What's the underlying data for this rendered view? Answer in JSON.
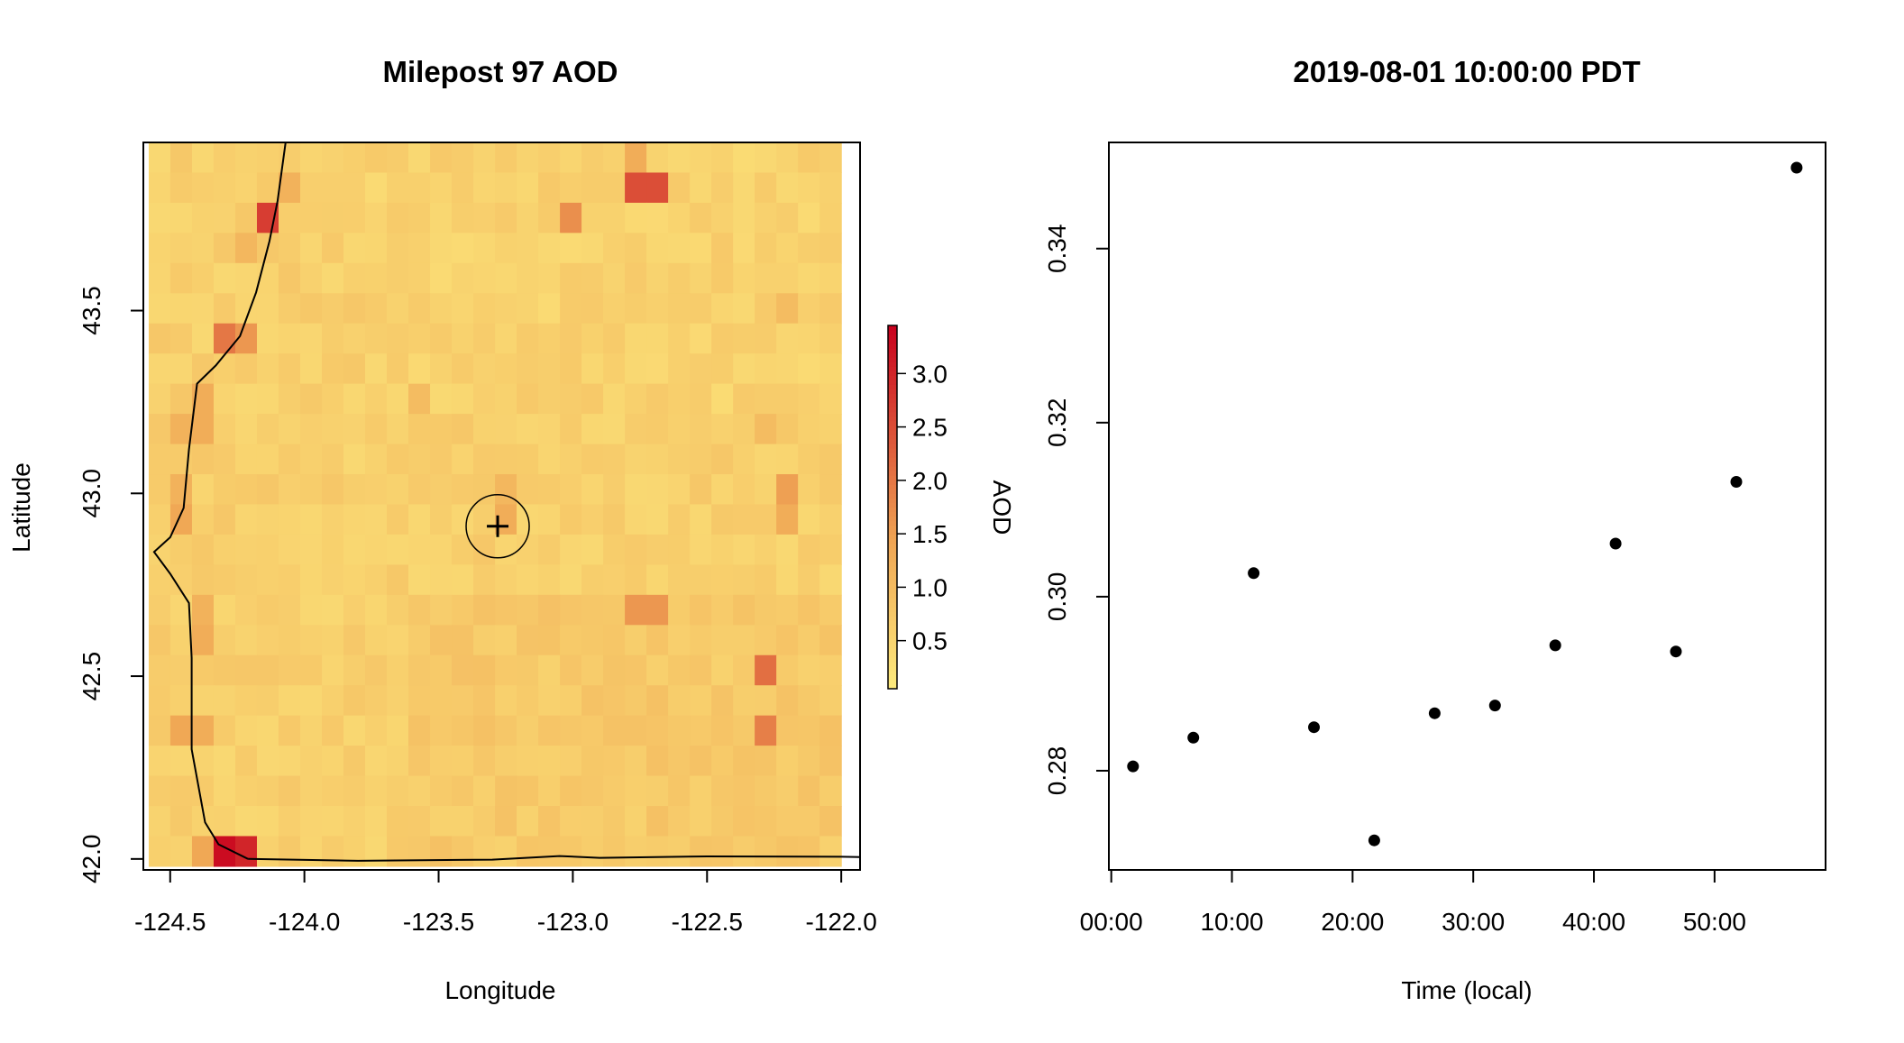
{
  "colors": {
    "aod_low": "#fdeb7d",
    "aod_mid": "#f0a755",
    "aod_high": "#c8001d",
    "background": "#ffffff",
    "ink": "#000000"
  },
  "chart_data": [
    {
      "type": "heatmap",
      "title": "Milepost 97 AOD",
      "xlabel": "Longitude",
      "ylabel": "Latitude",
      "xlim": [
        -124.6,
        -121.93
      ],
      "ylim": [
        41.97,
        43.96
      ],
      "xticks": [
        -124.5,
        -124.0,
        -123.5,
        -123.0,
        -122.5,
        -122.0
      ],
      "xtick_labels": [
        "-124.5",
        "-124.0",
        "-123.5",
        "-123.0",
        "-122.5",
        "-122.0"
      ],
      "yticks": [
        42.0,
        42.5,
        43.0,
        43.5
      ],
      "ytick_labels": [
        "42.0",
        "42.5",
        "43.0",
        "43.5"
      ],
      "grid": {
        "lon_min": -124.58,
        "lon_max": -122.0,
        "lat_min": 41.98,
        "lat_max": 43.96,
        "ncols": 32,
        "nrows": 24,
        "typical_aod": 0.6
      },
      "hotspots": [
        {
          "lon": -124.275,
          "lat": 42.01,
          "aod": 3.3
        },
        {
          "lon": -124.195,
          "lat": 42.01,
          "aod": 3.0
        },
        {
          "lon": -124.355,
          "lat": 42.01,
          "aod": 1.4
        },
        {
          "lon": -124.435,
          "lat": 42.315,
          "aod": 1.4
        },
        {
          "lon": -124.355,
          "lat": 42.315,
          "aod": 1.3
        },
        {
          "lon": -124.355,
          "lat": 42.58,
          "aod": 1.3
        },
        {
          "lon": -124.355,
          "lat": 42.66,
          "aod": 1.2
        },
        {
          "lon": -124.435,
          "lat": 42.99,
          "aod": 1.2
        },
        {
          "lon": -124.435,
          "lat": 42.905,
          "aod": 1.4
        },
        {
          "lon": -124.435,
          "lat": 43.14,
          "aod": 1.2
        },
        {
          "lon": -124.355,
          "lat": 43.14,
          "aod": 1.1
        },
        {
          "lon": -124.355,
          "lat": 43.29,
          "aod": 1.9
        },
        {
          "lon": -124.355,
          "lat": 43.22,
          "aod": 1.3
        },
        {
          "lon": -124.275,
          "lat": 43.45,
          "aod": 2.0
        },
        {
          "lon": -124.195,
          "lat": 43.45,
          "aod": 1.6
        },
        {
          "lon": -124.195,
          "lat": 43.64,
          "aod": 1.1
        },
        {
          "lon": -124.125,
          "lat": 43.78,
          "aod": 2.7
        },
        {
          "lon": -124.05,
          "lat": 43.86,
          "aod": 1.2
        },
        {
          "lon": -122.725,
          "lat": 43.86,
          "aod": 2.5
        },
        {
          "lon": -122.8,
          "lat": 43.93,
          "aod": 1.3
        },
        {
          "lon": -122.98,
          "lat": 43.78,
          "aod": 1.7
        },
        {
          "lon": -122.17,
          "lat": 42.99,
          "aod": 1.5
        },
        {
          "lon": -122.17,
          "lat": 42.905,
          "aod": 1.3
        },
        {
          "lon": -122.725,
          "lat": 42.655,
          "aod": 1.6
        },
        {
          "lon": -122.25,
          "lat": 42.5,
          "aod": 2.1
        },
        {
          "lon": -122.25,
          "lat": 42.32,
          "aod": 1.9
        },
        {
          "lon": -123.25,
          "lat": 42.92,
          "aod": 1.3
        },
        {
          "lon": -123.25,
          "lat": 42.99,
          "aod": 1.1
        },
        {
          "lon": -122.17,
          "lat": 43.48,
          "aod": 1.0
        },
        {
          "lon": -122.25,
          "lat": 43.2,
          "aod": 1.0
        },
        {
          "lon": -123.6,
          "lat": 43.29,
          "aod": 1.0
        }
      ],
      "coastline": [
        [
          -124.07,
          43.96
        ],
        [
          -124.1,
          43.8
        ],
        [
          -124.13,
          43.69
        ],
        [
          -124.18,
          43.55
        ],
        [
          -124.24,
          43.43
        ],
        [
          -124.33,
          43.35
        ],
        [
          -124.4,
          43.3
        ],
        [
          -124.43,
          43.12
        ],
        [
          -124.45,
          42.96
        ],
        [
          -124.5,
          42.88
        ],
        [
          -124.56,
          42.84
        ],
        [
          -124.5,
          42.78
        ],
        [
          -124.43,
          42.7
        ],
        [
          -124.42,
          42.55
        ],
        [
          -124.42,
          42.44
        ],
        [
          -124.42,
          42.3
        ],
        [
          -124.37,
          42.1
        ],
        [
          -124.32,
          42.04
        ],
        [
          -124.21,
          42.0
        ]
      ],
      "state_border": [
        [
          -124.21,
          42.0
        ],
        [
          -123.8,
          41.995
        ],
        [
          -123.3,
          41.998
        ],
        [
          -123.05,
          42.008
        ],
        [
          -122.9,
          42.003
        ],
        [
          -122.5,
          42.007
        ],
        [
          -122.0,
          42.006
        ],
        [
          -121.93,
          42.005
        ]
      ],
      "marker": {
        "lon": -123.28,
        "lat": 42.91,
        "label": "Milepost 97"
      },
      "colorbar": {
        "title": "AOD",
        "min": 0.05,
        "max": 3.45,
        "ticks": [
          0.5,
          1.0,
          1.5,
          2.0,
          2.5,
          3.0
        ],
        "tick_labels": [
          "0.5",
          "1.0",
          "1.5",
          "2.0",
          "2.5",
          "3.0"
        ]
      }
    },
    {
      "type": "scatter",
      "title": "2019-08-01 10:00:00 PDT",
      "xlabel": "Time (local)",
      "ylabel": "",
      "xlim": [
        -0.2,
        59.2
      ],
      "ylim": [
        0.2686,
        0.3522
      ],
      "xticks": [
        0,
        10,
        20,
        30,
        40,
        50
      ],
      "xtick_labels": [
        "00:00",
        "10:00",
        "20:00",
        "30:00",
        "40:00",
        "50:00"
      ],
      "yticks": [
        0.28,
        0.3,
        0.32,
        0.34
      ],
      "ytick_labels": [
        "0.28",
        "0.30",
        "0.32",
        "0.34"
      ],
      "x": [
        1.8,
        6.8,
        11.8,
        16.8,
        21.8,
        26.8,
        31.8,
        36.8,
        41.8,
        46.8,
        51.8,
        56.8
      ],
      "values": [
        0.2805,
        0.2838,
        0.3027,
        0.285,
        0.272,
        0.2866,
        0.2875,
        0.2944,
        0.3061,
        0.2937,
        0.3132,
        0.3493
      ]
    }
  ]
}
